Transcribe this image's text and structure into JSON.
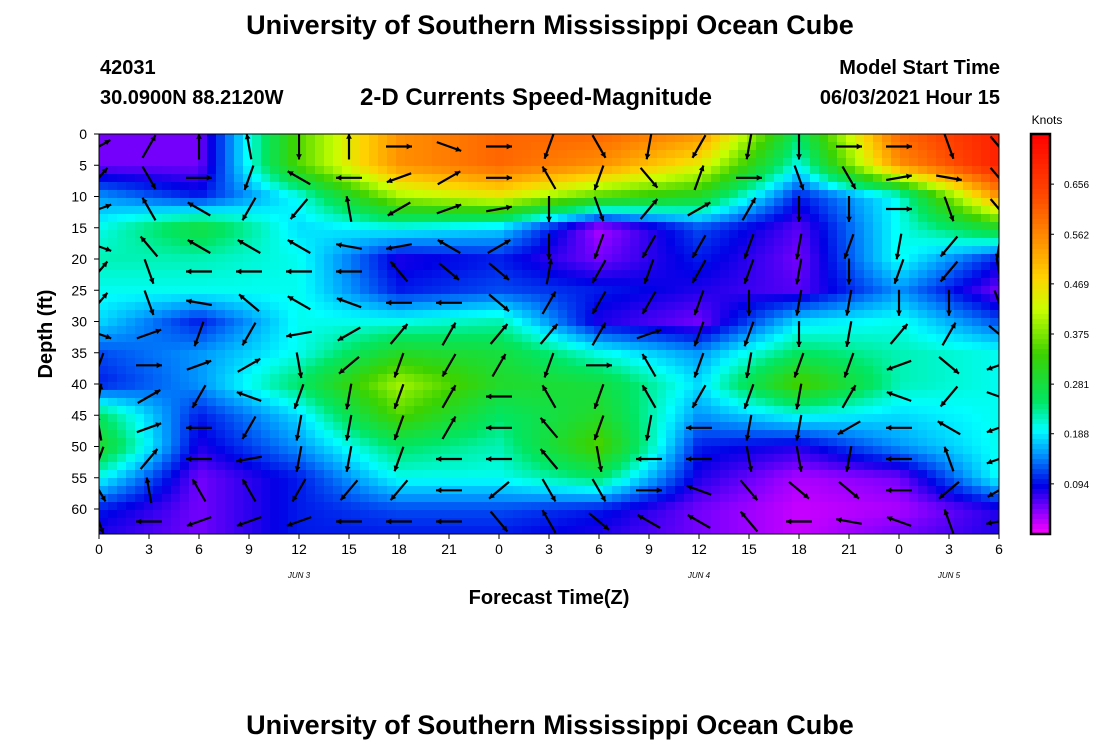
{
  "header": {
    "title": "University of Southern Mississippi Ocean Cube",
    "station_id": "42031",
    "station_coords": "30.0900N  88.2120W",
    "subtitle": "2-D Currents Speed-Magnitude",
    "model_start_label": "Model Start Time",
    "model_start_value": "06/03/2021 Hour 15"
  },
  "footer": {
    "title": "University of Southern Mississippi Ocean Cube"
  },
  "chart_data": {
    "type": "heatmap",
    "title": "2-D Currents Speed-Magnitude",
    "xlabel": "Forecast Time(Z)",
    "ylabel": "Depth (ft)",
    "x_tick_labels": [
      "0",
      "3",
      "6",
      "9",
      "12",
      "15",
      "18",
      "21",
      "0",
      "3",
      "6",
      "9",
      "12",
      "15",
      "18",
      "21",
      "0",
      "3",
      "6"
    ],
    "x_date_labels": [
      "JUN 3",
      "JUN 4",
      "JUN 5"
    ],
    "x_range_hours": [
      0,
      54
    ],
    "y_tick_labels": [
      "0",
      "5",
      "10",
      "15",
      "20",
      "25",
      "30",
      "35",
      "40",
      "45",
      "50",
      "55",
      "60"
    ],
    "ylim": [
      0,
      64
    ],
    "y_inverted": true,
    "colorbar": {
      "unit": "Knots",
      "tick_labels": [
        "0.656",
        "0.562",
        "0.469",
        "0.375",
        "0.281",
        "0.188",
        "0.094"
      ],
      "ticks": [
        0.656,
        0.562,
        0.469,
        0.375,
        0.281,
        0.188,
        0.094
      ],
      "range": [
        0.0,
        0.75
      ]
    },
    "depths": [
      0,
      5,
      10,
      15,
      20,
      25,
      30,
      35,
      40,
      45,
      50,
      55,
      60,
      64
    ],
    "hours": [
      0,
      6,
      12,
      18,
      24,
      30,
      36,
      42,
      48,
      54
    ],
    "speed": [
      [
        0.05,
        0.05,
        0.35,
        0.55,
        0.6,
        0.6,
        0.55,
        0.25,
        0.6,
        0.7
      ],
      [
        0.05,
        0.05,
        0.35,
        0.55,
        0.6,
        0.55,
        0.45,
        0.2,
        0.55,
        0.7
      ],
      [
        0.15,
        0.1,
        0.2,
        0.4,
        0.45,
        0.35,
        0.3,
        0.1,
        0.2,
        0.55
      ],
      [
        0.2,
        0.28,
        0.18,
        0.2,
        0.18,
        0.03,
        0.12,
        0.06,
        0.2,
        0.3
      ],
      [
        0.22,
        0.22,
        0.2,
        0.08,
        0.1,
        0.05,
        0.1,
        0.05,
        0.2,
        0.1
      ],
      [
        0.2,
        0.2,
        0.2,
        0.1,
        0.12,
        0.1,
        0.08,
        0.06,
        0.15,
        0.05
      ],
      [
        0.18,
        0.1,
        0.2,
        0.2,
        0.22,
        0.08,
        0.05,
        0.18,
        0.2,
        0.12
      ],
      [
        0.12,
        0.15,
        0.2,
        0.3,
        0.28,
        0.2,
        0.15,
        0.25,
        0.22,
        0.2
      ],
      [
        0.1,
        0.15,
        0.25,
        0.4,
        0.3,
        0.28,
        0.18,
        0.35,
        0.22,
        0.2
      ],
      [
        0.25,
        0.1,
        0.18,
        0.35,
        0.25,
        0.3,
        0.15,
        0.2,
        0.18,
        0.2
      ],
      [
        0.3,
        0.08,
        0.15,
        0.25,
        0.22,
        0.35,
        0.1,
        0.08,
        0.15,
        0.2
      ],
      [
        0.2,
        0.05,
        0.1,
        0.2,
        0.2,
        0.25,
        0.08,
        0.03,
        0.05,
        0.2
      ],
      [
        0.1,
        0.05,
        0.1,
        0.12,
        0.12,
        0.1,
        0.05,
        0.02,
        0.03,
        0.08
      ],
      [
        0.08,
        0.05,
        0.1,
        0.1,
        0.1,
        0.08,
        0.05,
        0.02,
        0.05,
        0.08
      ]
    ],
    "vector_hours": [
      0,
      3,
      6,
      9,
      12,
      15,
      18,
      21,
      24,
      27,
      30,
      33,
      36,
      39,
      42,
      45,
      48,
      51,
      54
    ],
    "vector_depths": [
      2,
      7,
      12,
      18,
      22,
      27,
      32,
      37,
      42,
      47,
      52,
      57,
      62
    ],
    "vector_directions_deg": [
      [
        60,
        30,
        0,
        350,
        180,
        0,
        90,
        110,
        90,
        200,
        150,
        190,
        210,
        190,
        180,
        90,
        90,
        160,
        140
      ],
      [
        40,
        150,
        90,
        200,
        300,
        270,
        250,
        60,
        90,
        330,
        200,
        140,
        20,
        90,
        160,
        150,
        80,
        100,
        140
      ],
      [
        70,
        330,
        300,
        210,
        220,
        350,
        240,
        70,
        80,
        180,
        160,
        40,
        60,
        30,
        180,
        180,
        90,
        160,
        140
      ],
      [
        110,
        320,
        300,
        300,
        300,
        280,
        260,
        300,
        60,
        180,
        200,
        210,
        210,
        200,
        190,
        200,
        190,
        220,
        190
      ],
      [
        40,
        160,
        270,
        270,
        270,
        270,
        320,
        130,
        130,
        10,
        210,
        200,
        210,
        200,
        190,
        180,
        200,
        220,
        170
      ],
      [
        40,
        160,
        280,
        310,
        300,
        290,
        270,
        270,
        130,
        30,
        210,
        210,
        200,
        180,
        190,
        190,
        180,
        180,
        160
      ],
      [
        110,
        70,
        200,
        210,
        260,
        240,
        40,
        30,
        40,
        40,
        30,
        70,
        200,
        200,
        180,
        190,
        40,
        30,
        130
      ],
      [
        200,
        90,
        70,
        60,
        170,
        230,
        200,
        210,
        30,
        200,
        90,
        330,
        200,
        190,
        200,
        200,
        250,
        130,
        250
      ],
      [
        10,
        60,
        210,
        290,
        200,
        190,
        200,
        30,
        270,
        330,
        200,
        330,
        210,
        200,
        190,
        30,
        290,
        220,
        110
      ],
      [
        350,
        70,
        270,
        210,
        190,
        190,
        200,
        30,
        270,
        320,
        200,
        190,
        270,
        190,
        190,
        240,
        270,
        300,
        250
      ],
      [
        200,
        40,
        270,
        260,
        190,
        190,
        200,
        270,
        270,
        320,
        170,
        270,
        270,
        170,
        170,
        190,
        270,
        340,
        250
      ],
      [
        150,
        350,
        330,
        330,
        210,
        220,
        220,
        270,
        230,
        150,
        150,
        90,
        290,
        140,
        130,
        130,
        270,
        230,
        240
      ],
      [
        160,
        270,
        250,
        250,
        250,
        270,
        270,
        270,
        140,
        330,
        130,
        300,
        300,
        320,
        270,
        280,
        290,
        340,
        260
      ]
    ]
  }
}
